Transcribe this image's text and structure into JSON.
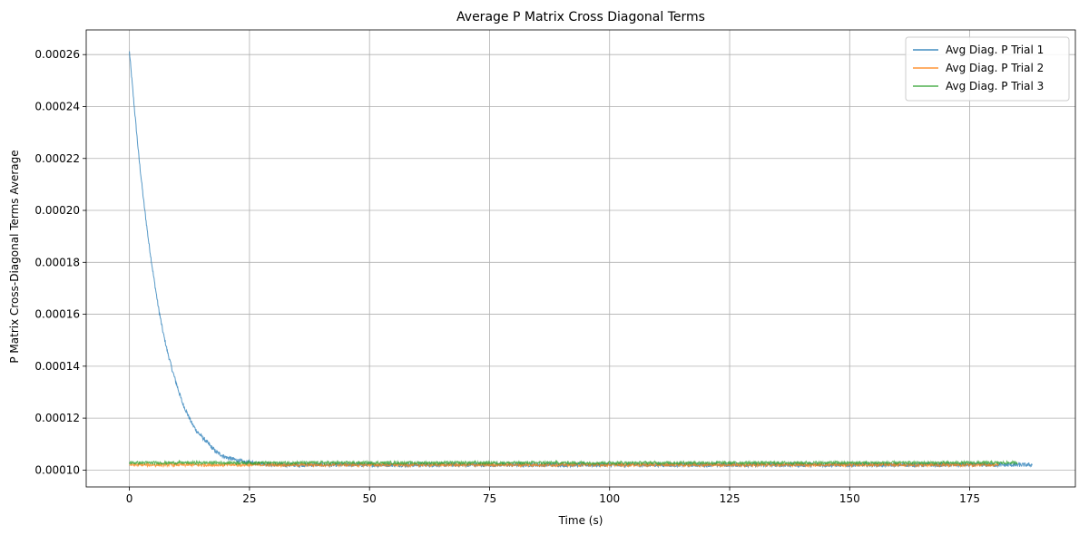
{
  "chart_data": {
    "type": "line",
    "title": "Average P Matrix Cross Diagonal Terms",
    "xlabel": "Time (s)",
    "ylabel": "P Matrix Cross-Diagonal Terms Average",
    "xlim": [
      -9,
      197
    ],
    "ylim": [
      9.35e-05,
      0.0002695
    ],
    "xticks": [
      0,
      25,
      50,
      75,
      100,
      125,
      150,
      175
    ],
    "xtick_labels": [
      "0",
      "25",
      "50",
      "75",
      "100",
      "125",
      "150",
      "175"
    ],
    "yticks": [
      0.0001,
      0.00012,
      0.00014,
      0.00016,
      0.00018,
      0.0002,
      0.00022,
      0.00024,
      0.00026
    ],
    "ytick_labels": [
      "0.00010",
      "0.00012",
      "0.00014",
      "0.00016",
      "0.00018",
      "0.00020",
      "0.00022",
      "0.00024",
      "0.00026"
    ],
    "grid": true,
    "legend_position": "top-right",
    "series": [
      {
        "name": "Avg Diag. P Trial 1",
        "color": "#1f77b4",
        "x": [
          0,
          1,
          2,
          3,
          4,
          5,
          6,
          7,
          8,
          9,
          10,
          11,
          12,
          13,
          14,
          15,
          16,
          17,
          18,
          19,
          20,
          21,
          22,
          23,
          24,
          25,
          30,
          40,
          60,
          80,
          100,
          120,
          140,
          160,
          180,
          188
        ],
        "y": [
          0.000261,
          0.00024,
          0.00022,
          0.000203,
          0.000188,
          0.000175,
          0.000163,
          0.000153,
          0.000145,
          0.000138,
          0.000132,
          0.000126,
          0.000122,
          0.000118,
          0.000115,
          0.000113,
          0.000111,
          0.000109,
          0.000107,
          0.000106,
          0.000105,
          0.0001045,
          0.000104,
          0.0001035,
          0.000103,
          0.000103,
          0.000102,
          0.000102,
          0.000102,
          0.000102,
          0.000102,
          0.000102,
          0.000102,
          0.000102,
          0.000102,
          0.000102
        ],
        "noise": 8e-07
      },
      {
        "name": "Avg Diag. P Trial 2",
        "color": "#ff7f0e",
        "x": [
          0,
          181
        ],
        "y": [
          0.000102,
          0.000102
        ],
        "noise": 6e-07
      },
      {
        "name": "Avg Diag. P Trial 3",
        "color": "#2ca02c",
        "x": [
          0,
          185
        ],
        "y": [
          0.0001028,
          0.0001028
        ],
        "noise": 6e-07
      }
    ]
  }
}
